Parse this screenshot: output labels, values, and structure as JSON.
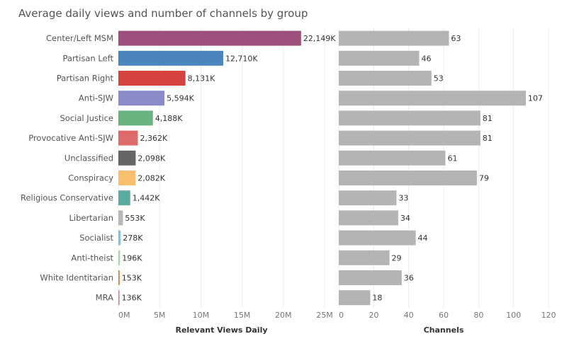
{
  "chart_data": {
    "title": "Average daily views and number of channels by group",
    "type": "bar",
    "orientation": "horizontal",
    "categories": [
      "Center/Left MSM",
      "Partisan Left",
      "Partisan Right",
      "Anti-SJW",
      "Social Justice",
      "Provocative Anti-SJW",
      "Unclassified",
      "Conspiracy",
      "Religious Conservative",
      "Libertarian",
      "Socialist",
      "Anti-theist",
      "White Identitarian",
      "MRA"
    ],
    "colors": [
      "#9e4f7b",
      "#4a86bd",
      "#d4413f",
      "#8b8bc9",
      "#6ab27e",
      "#de6a6a",
      "#666666",
      "#f7bf6e",
      "#5cab9f",
      "#b8b8b8",
      "#7fc6dc",
      "#a8d5a8",
      "#d9823c",
      "#e0769a"
    ],
    "panels": [
      {
        "xlabel": "Relevant Views Daily",
        "xlim": [
          0,
          25000000
        ],
        "ticks": [
          0,
          5000000,
          10000000,
          15000000,
          20000000,
          25000000
        ],
        "tick_labels": [
          "0M",
          "5M",
          "10M",
          "15M",
          "20M",
          "25M"
        ],
        "values": [
          22149000,
          12710000,
          8131000,
          5594000,
          4188000,
          2362000,
          2098000,
          2082000,
          1442000,
          553000,
          278000,
          196000,
          153000,
          136000
        ],
        "labels": [
          "22,149K",
          "12,710K",
          "8,131K",
          "5,594K",
          "4,188K",
          "2,362K",
          "2,098K",
          "2,082K",
          "1,442K",
          "553K",
          "278K",
          "196K",
          "153K",
          "136K"
        ]
      },
      {
        "xlabel": "Channels",
        "xlim": [
          0,
          120
        ],
        "ticks": [
          0,
          20,
          40,
          60,
          80,
          100,
          120
        ],
        "tick_labels": [
          "0",
          "20",
          "40",
          "60",
          "80",
          "100",
          "120"
        ],
        "values": [
          63,
          46,
          53,
          107,
          81,
          81,
          61,
          79,
          33,
          34,
          44,
          29,
          36,
          18
        ],
        "labels": [
          "63",
          "46",
          "53",
          "107",
          "81",
          "81",
          "61",
          "79",
          "33",
          "34",
          "44",
          "29",
          "36",
          "18"
        ],
        "color": "#b4b4b4"
      }
    ],
    "grid": true
  }
}
